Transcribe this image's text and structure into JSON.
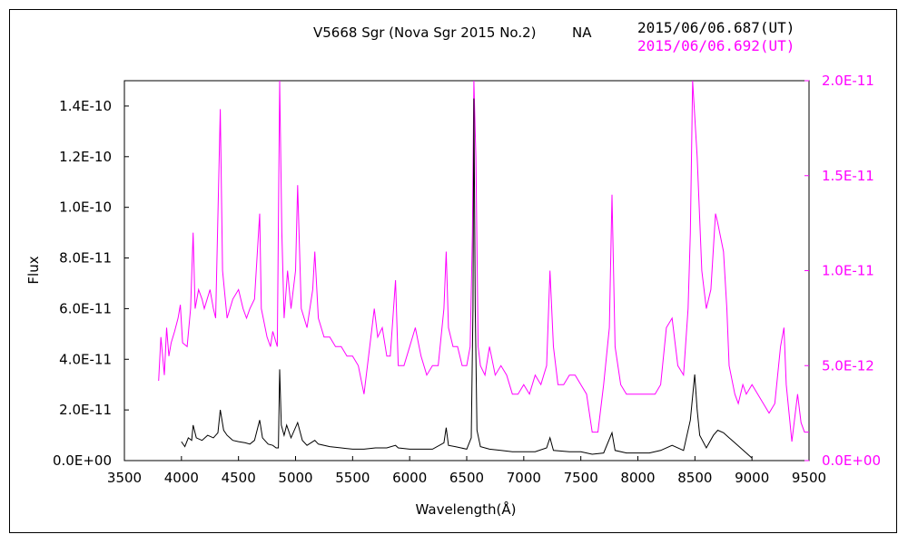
{
  "chart_data": {
    "type": "line",
    "title": "V5668 Sgr (Nova Sgr 2015 No.2)",
    "title_tag": "NA",
    "xlabel": "Wavelength(Å)",
    "ylabel": "Flux",
    "xlim": [
      3500,
      9500
    ],
    "ylim_left": [
      0,
      1.5e-10
    ],
    "ylim_right": [
      0,
      2e-11
    ],
    "x_ticks": [
      "3500",
      "4000",
      "4500",
      "5000",
      "5500",
      "6000",
      "6500",
      "7000",
      "7500",
      "8000",
      "8500",
      "9000",
      "9500"
    ],
    "y_ticks_left": [
      "0.0E+00",
      "2.0E-11",
      "4.0E-11",
      "6.0E-11",
      "8.0E-11",
      "1.0E-10",
      "1.2E-10",
      "1.4E-10"
    ],
    "y_ticks_right": [
      "0.0E+00",
      "5.0E-12",
      "1.0E-11",
      "1.5E-11",
      "2.0E-11"
    ],
    "grid": false,
    "series": [
      {
        "name": "2015/06/06.687(UT)",
        "axis": "left",
        "color": "#000000",
        "points": [
          [
            4000,
            7.5e-12
          ],
          [
            4030,
            5.5e-12
          ],
          [
            4060,
            9e-12
          ],
          [
            4090,
            8e-12
          ],
          [
            4102,
            1.4e-11
          ],
          [
            4130,
            9e-12
          ],
          [
            4180,
            8e-12
          ],
          [
            4230,
            1e-11
          ],
          [
            4280,
            9e-12
          ],
          [
            4320,
            1.1e-11
          ],
          [
            4340,
            2e-11
          ],
          [
            4370,
            1.2e-11
          ],
          [
            4400,
            1e-11
          ],
          [
            4450,
            8e-12
          ],
          [
            4500,
            7.5e-12
          ],
          [
            4560,
            7e-12
          ],
          [
            4600,
            6.5e-12
          ],
          [
            4640,
            8e-12
          ],
          [
            4686,
            1.6e-11
          ],
          [
            4710,
            9e-12
          ],
          [
            4760,
            6.5e-12
          ],
          [
            4800,
            6e-12
          ],
          [
            4830,
            5e-12
          ],
          [
            4850,
            5e-12
          ],
          [
            4861,
            3.6e-11
          ],
          [
            4875,
            1.4e-11
          ],
          [
            4900,
            1e-11
          ],
          [
            4922,
            1.4e-11
          ],
          [
            4960,
            9e-12
          ],
          [
            5018,
            1.5e-11
          ],
          [
            5060,
            8e-12
          ],
          [
            5100,
            6e-12
          ],
          [
            5169,
            8e-12
          ],
          [
            5200,
            6.5e-12
          ],
          [
            5300,
            5.5e-12
          ],
          [
            5400,
            5e-12
          ],
          [
            5500,
            4.5e-12
          ],
          [
            5600,
            4.5e-12
          ],
          [
            5700,
            5e-12
          ],
          [
            5750,
            5e-12
          ],
          [
            5800,
            5e-12
          ],
          [
            5876,
            6e-12
          ],
          [
            5900,
            5e-12
          ],
          [
            6000,
            4.5e-12
          ],
          [
            6100,
            4.5e-12
          ],
          [
            6200,
            4.5e-12
          ],
          [
            6300,
            7e-12
          ],
          [
            6320,
            1.3e-11
          ],
          [
            6340,
            6e-12
          ],
          [
            6400,
            5.5e-12
          ],
          [
            6450,
            5e-12
          ],
          [
            6500,
            4.5e-12
          ],
          [
            6540,
            9e-12
          ],
          [
            6555,
            6e-11
          ],
          [
            6563,
            1.43e-10
          ],
          [
            6575,
            6e-11
          ],
          [
            6590,
            1.2e-11
          ],
          [
            6620,
            5.5e-12
          ],
          [
            6700,
            4.5e-12
          ],
          [
            6800,
            4e-12
          ],
          [
            6900,
            3.5e-12
          ],
          [
            7000,
            3.5e-12
          ],
          [
            7100,
            3.5e-12
          ],
          [
            7200,
            5e-12
          ],
          [
            7230,
            9e-12
          ],
          [
            7260,
            4e-12
          ],
          [
            7400,
            3.5e-12
          ],
          [
            7500,
            3.5e-12
          ],
          [
            7600,
            2.5e-12
          ],
          [
            7700,
            3e-12
          ],
          [
            7773,
            1.1e-11
          ],
          [
            7800,
            4e-12
          ],
          [
            7900,
            3e-12
          ],
          [
            8000,
            3e-12
          ],
          [
            8100,
            3e-12
          ],
          [
            8200,
            4e-12
          ],
          [
            8300,
            6e-12
          ],
          [
            8400,
            4e-12
          ],
          [
            8460,
            1.6e-11
          ],
          [
            8498,
            3.4e-11
          ],
          [
            8520,
            2e-11
          ],
          [
            8542,
            1e-11
          ],
          [
            8600,
            5e-12
          ],
          [
            8662,
            1e-11
          ],
          [
            8700,
            1.2e-11
          ],
          [
            8750,
            1.1e-11
          ],
          [
            8800,
            9e-12
          ],
          [
            8850,
            7e-12
          ],
          [
            8900,
            5e-12
          ],
          [
            8950,
            3e-12
          ],
          [
            9000,
            1e-12
          ]
        ]
      },
      {
        "name": "2015/06/06.692(UT)",
        "axis": "right",
        "color": "#ff00ff",
        "points": [
          [
            3800,
            4.2e-12
          ],
          [
            3820,
            6.5e-12
          ],
          [
            3850,
            4.5e-12
          ],
          [
            3870,
            7e-12
          ],
          [
            3890,
            5.5e-12
          ],
          [
            3910,
            6.2e-12
          ],
          [
            3940,
            6.8e-12
          ],
          [
            3970,
            7.5e-12
          ],
          [
            3990,
            8.2e-12
          ],
          [
            4010,
            6.2e-12
          ],
          [
            4050,
            6e-12
          ],
          [
            4080,
            8e-12
          ],
          [
            4102,
            1.2e-11
          ],
          [
            4120,
            8e-12
          ],
          [
            4150,
            9e-12
          ],
          [
            4180,
            8.5e-12
          ],
          [
            4200,
            8e-12
          ],
          [
            4250,
            9e-12
          ],
          [
            4280,
            8e-12
          ],
          [
            4300,
            7.5e-12
          ],
          [
            4340,
            1.85e-11
          ],
          [
            4360,
            1e-11
          ],
          [
            4400,
            7.5e-12
          ],
          [
            4450,
            8.5e-12
          ],
          [
            4500,
            9e-12
          ],
          [
            4540,
            8e-12
          ],
          [
            4570,
            7.5e-12
          ],
          [
            4600,
            8e-12
          ],
          [
            4640,
            8.5e-12
          ],
          [
            4686,
            1.3e-11
          ],
          [
            4700,
            8e-12
          ],
          [
            4750,
            6.5e-12
          ],
          [
            4780,
            6e-12
          ],
          [
            4800,
            6.8e-12
          ],
          [
            4840,
            6e-12
          ],
          [
            4861,
            2e-11
          ],
          [
            4880,
            1.2e-11
          ],
          [
            4900,
            7.5e-12
          ],
          [
            4930,
            1e-11
          ],
          [
            4960,
            8e-12
          ],
          [
            5000,
            1e-11
          ],
          [
            5018,
            1.45e-11
          ],
          [
            5050,
            8e-12
          ],
          [
            5100,
            7e-12
          ],
          [
            5150,
            9e-12
          ],
          [
            5169,
            1.1e-11
          ],
          [
            5200,
            7.5e-12
          ],
          [
            5250,
            6.5e-12
          ],
          [
            5300,
            6.5e-12
          ],
          [
            5350,
            6e-12
          ],
          [
            5400,
            6e-12
          ],
          [
            5450,
            5.5e-12
          ],
          [
            5500,
            5.5e-12
          ],
          [
            5550,
            5e-12
          ],
          [
            5600,
            3.5e-12
          ],
          [
            5650,
            6e-12
          ],
          [
            5690,
            8e-12
          ],
          [
            5720,
            6.5e-12
          ],
          [
            5760,
            7e-12
          ],
          [
            5800,
            5.5e-12
          ],
          [
            5830,
            5.5e-12
          ],
          [
            5876,
            9.5e-12
          ],
          [
            5900,
            5e-12
          ],
          [
            5950,
            5e-12
          ],
          [
            6000,
            6e-12
          ],
          [
            6050,
            7e-12
          ],
          [
            6100,
            5.5e-12
          ],
          [
            6150,
            4.5e-12
          ],
          [
            6200,
            5e-12
          ],
          [
            6250,
            5e-12
          ],
          [
            6300,
            8e-12
          ],
          [
            6320,
            1.1e-11
          ],
          [
            6340,
            7e-12
          ],
          [
            6380,
            6e-12
          ],
          [
            6420,
            6e-12
          ],
          [
            6460,
            5e-12
          ],
          [
            6500,
            5e-12
          ],
          [
            6530,
            6e-12
          ],
          [
            6550,
            1.2e-11
          ],
          [
            6563,
            2e-11
          ],
          [
            6580,
            1.6e-11
          ],
          [
            6600,
            6e-12
          ],
          [
            6620,
            5e-12
          ],
          [
            6660,
            4.5e-12
          ],
          [
            6700,
            6e-12
          ],
          [
            6750,
            4.5e-12
          ],
          [
            6800,
            5e-12
          ],
          [
            6850,
            4.5e-12
          ],
          [
            6900,
            3.5e-12
          ],
          [
            6950,
            3.5e-12
          ],
          [
            7000,
            4e-12
          ],
          [
            7050,
            3.5e-12
          ],
          [
            7100,
            4.5e-12
          ],
          [
            7150,
            4e-12
          ],
          [
            7200,
            5e-12
          ],
          [
            7230,
            1e-11
          ],
          [
            7260,
            6e-12
          ],
          [
            7300,
            4e-12
          ],
          [
            7350,
            4e-12
          ],
          [
            7400,
            4.5e-12
          ],
          [
            7450,
            4.5e-12
          ],
          [
            7500,
            4e-12
          ],
          [
            7550,
            3.5e-12
          ],
          [
            7600,
            1.5e-12
          ],
          [
            7650,
            1.5e-12
          ],
          [
            7700,
            4e-12
          ],
          [
            7750,
            7e-12
          ],
          [
            7773,
            1.4e-11
          ],
          [
            7800,
            6e-12
          ],
          [
            7850,
            4e-12
          ],
          [
            7900,
            3.5e-12
          ],
          [
            7950,
            3.5e-12
          ],
          [
            8000,
            3.5e-12
          ],
          [
            8050,
            3.5e-12
          ],
          [
            8100,
            3.5e-12
          ],
          [
            8150,
            3.5e-12
          ],
          [
            8200,
            4e-12
          ],
          [
            8250,
            7e-12
          ],
          [
            8300,
            7.5e-12
          ],
          [
            8350,
            5e-12
          ],
          [
            8400,
            4.5e-12
          ],
          [
            8440,
            8e-12
          ],
          [
            8460,
            1.2e-11
          ],
          [
            8480,
            2e-11
          ],
          [
            8520,
            1.6e-11
          ],
          [
            8560,
            1e-11
          ],
          [
            8600,
            8e-12
          ],
          [
            8640,
            9e-12
          ],
          [
            8680,
            1.3e-11
          ],
          [
            8700,
            1.25e-11
          ],
          [
            8750,
            1.1e-11
          ],
          [
            8780,
            8e-12
          ],
          [
            8800,
            5e-12
          ],
          [
            8850,
            3.5e-12
          ],
          [
            8880,
            3e-12
          ],
          [
            8920,
            4e-12
          ],
          [
            8950,
            3.5e-12
          ],
          [
            9000,
            4e-12
          ],
          [
            9050,
            3.5e-12
          ],
          [
            9100,
            3e-12
          ],
          [
            9150,
            2.5e-12
          ],
          [
            9200,
            3e-12
          ],
          [
            9250,
            6e-12
          ],
          [
            9280,
            7e-12
          ],
          [
            9300,
            4e-12
          ],
          [
            9350,
            1e-12
          ],
          [
            9400,
            3.5e-12
          ],
          [
            9430,
            2e-12
          ],
          [
            9460,
            1.5e-12
          ],
          [
            9500,
            1.5e-12
          ]
        ]
      }
    ]
  }
}
